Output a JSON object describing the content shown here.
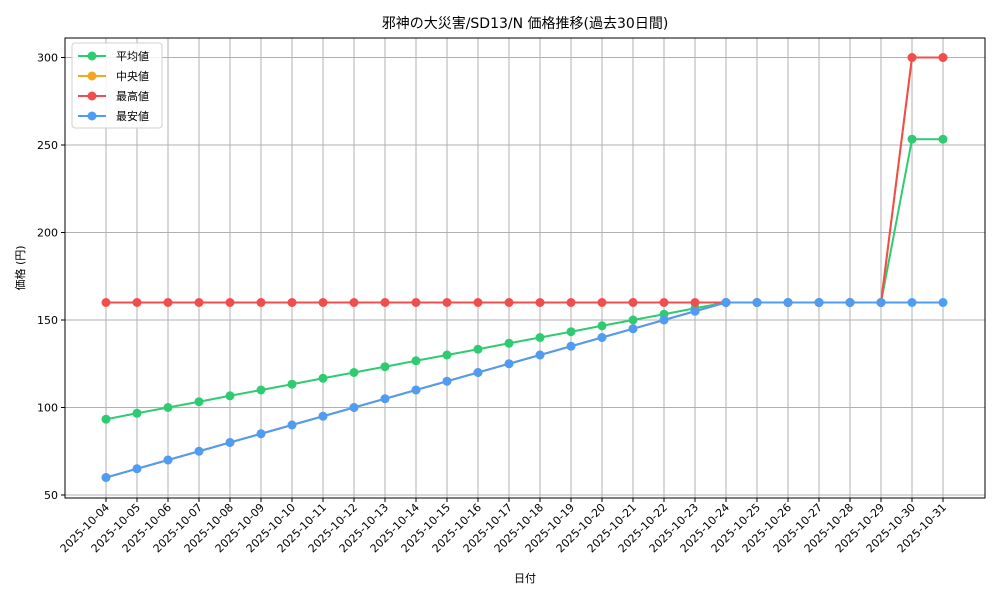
{
  "chart_data": {
    "type": "line",
    "title": "邪神の大災害/SD13/N 価格推移(過去30日間)",
    "xlabel": "日付",
    "ylabel": "価格 (円)",
    "ylim": [
      50,
      310
    ],
    "yticks": [
      50,
      100,
      150,
      200,
      250,
      300
    ],
    "grid": true,
    "legend_position": "upper left",
    "x": [
      "2025-10-04",
      "2025-10-05",
      "2025-10-06",
      "2025-10-07",
      "2025-10-08",
      "2025-10-09",
      "2025-10-10",
      "2025-10-11",
      "2025-10-12",
      "2025-10-13",
      "2025-10-14",
      "2025-10-15",
      "2025-10-16",
      "2025-10-17",
      "2025-10-18",
      "2025-10-19",
      "2025-10-20",
      "2025-10-21",
      "2025-10-22",
      "2025-10-23",
      "2025-10-24",
      "2025-10-25",
      "2025-10-26",
      "2025-10-27",
      "2025-10-28",
      "2025-10-29",
      "2025-10-30",
      "2025-10-31"
    ],
    "series": [
      {
        "name": "平均値",
        "color": "#2ecc71",
        "values": [
          93.3,
          96.7,
          100.0,
          103.3,
          106.7,
          110.0,
          113.3,
          116.7,
          120.0,
          123.3,
          126.7,
          130.0,
          133.3,
          136.7,
          140.0,
          143.3,
          146.7,
          150.0,
          153.3,
          156.7,
          160,
          160,
          160,
          160,
          160,
          160,
          253.3,
          253.3
        ]
      },
      {
        "name": "中央値",
        "color": "#f5a623",
        "values": [
          60,
          65,
          70,
          75,
          80,
          85,
          90,
          95,
          100,
          105,
          110,
          115,
          120,
          125,
          130,
          135,
          140,
          145,
          150,
          155,
          160,
          160,
          160,
          160,
          160,
          160,
          300,
          300
        ]
      },
      {
        "name": "最高値",
        "color": "#f04e4e",
        "values": [
          160,
          160,
          160,
          160,
          160,
          160,
          160,
          160,
          160,
          160,
          160,
          160,
          160,
          160,
          160,
          160,
          160,
          160,
          160,
          160,
          160,
          160,
          160,
          160,
          160,
          160,
          300,
          300
        ]
      },
      {
        "name": "最安値",
        "color": "#4f9cf5",
        "values": [
          60,
          65,
          70,
          75,
          80,
          85,
          90,
          95,
          100,
          105,
          110,
          115,
          120,
          125,
          130,
          135,
          140,
          145,
          150,
          155,
          160,
          160,
          160,
          160,
          160,
          160,
          160,
          160
        ]
      }
    ]
  }
}
